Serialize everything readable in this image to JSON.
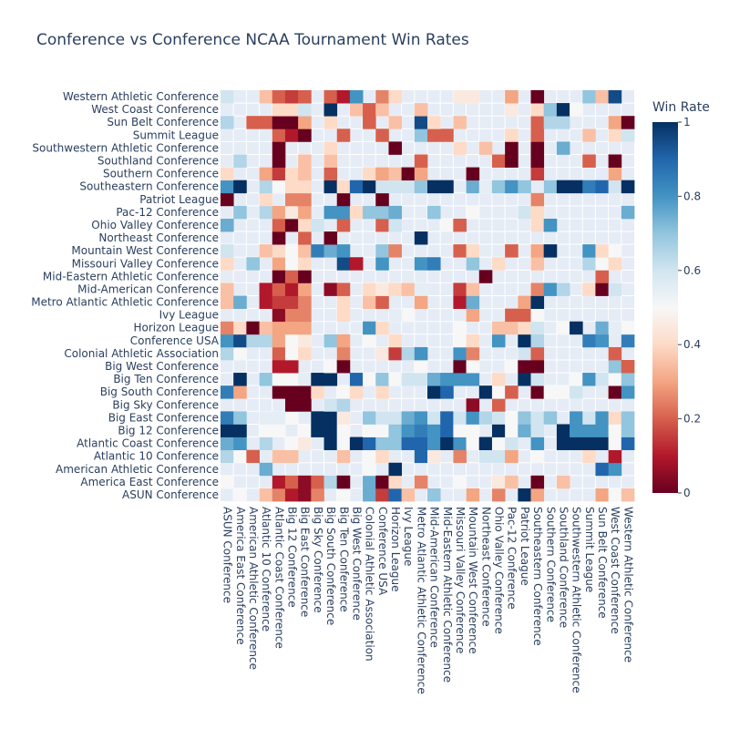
{
  "chart_data": {
    "type": "heatmap",
    "title": "Conference vs Conference NCAA Tournament Win Rates",
    "xlabel": "",
    "ylabel": "",
    "colorbar": {
      "title": "Win Rate",
      "range": [
        0,
        1
      ],
      "ticks": [
        0,
        0.2,
        0.4,
        0.6,
        0.8,
        1
      ]
    },
    "colorscale_name": "RdBu",
    "colors": {
      "empty_cell": "#e5ecf6",
      "text": "#2a3f5f",
      "scale": [
        "#67001f",
        "#b2182b",
        "#d6604d",
        "#f4a582",
        "#fddbc7",
        "#f7f7f7",
        "#d1e5f0",
        "#92c5de",
        "#4393c3",
        "#2166ac",
        "#053061"
      ]
    },
    "categories": [
      "ASUN Conference",
      "America East Conference",
      "American Athletic Conference",
      "Atlantic 10 Conference",
      "Atlantic Coast Conference",
      "Big 12 Conference",
      "Big East Conference",
      "Big Sky Conference",
      "Big South Conference",
      "Big Ten Conference",
      "Big West Conference",
      "Colonial Athletic Association",
      "Conference USA",
      "Horizon League",
      "Ivy League",
      "Metro Atlantic Athletic Conference",
      "Mid-American Conference",
      "Mid-Eastern Athletic Conference",
      "Missouri Valley Conference",
      "Mountain West Conference",
      "Northeast Conference",
      "Ohio Valley Conference",
      "Pac-12 Conference",
      "Patriot League",
      "Southeastern Conference",
      "Southern Conference",
      "Southland Conference",
      "Southwestern Athletic Conference",
      "Summit League",
      "Sun Belt Conference",
      "West Coast Conference",
      "Western Athletic Conference"
    ],
    "values": [
      [
        null,
        0.5,
        null,
        0.35,
        0.25,
        0.1,
        0.05,
        0.25,
        null,
        0.5,
        null,
        0.75,
        0.15,
        0.9,
        0.35,
        null,
        0.7,
        null,
        null,
        0.3,
        null,
        0.25,
        null,
        1.0,
        0.3,
        null,
        null,
        null,
        null,
        0.3,
        0.5,
        0.35
      ],
      [
        0.5,
        null,
        null,
        null,
        0.1,
        0.2,
        0.05,
        0.2,
        0.65,
        0.0,
        null,
        0.75,
        0.0,
        0.4,
        null,
        0.25,
        null,
        null,
        0.5,
        null,
        null,
        0.45,
        0.35,
        null,
        0.0,
        null,
        0.35,
        null,
        null,
        null,
        null,
        null
      ],
      [
        null,
        null,
        null,
        0.75,
        null,
        null,
        null,
        null,
        null,
        null,
        null,
        0.5,
        null,
        1.0,
        null,
        null,
        null,
        null,
        null,
        null,
        null,
        null,
        null,
        null,
        null,
        null,
        null,
        null,
        null,
        0.9,
        0.8,
        null
      ],
      [
        0.65,
        0.5,
        0.2,
        null,
        0.35,
        0.35,
        null,
        null,
        null,
        0.35,
        null,
        0.5,
        0.4,
        null,
        null,
        0.9,
        0.45,
        null,
        0.25,
        null,
        0.6,
        0.6,
        0.3,
        null,
        0.5,
        null,
        null,
        null,
        0.4,
        null,
        0.1,
        null
      ],
      [
        0.75,
        0.8,
        null,
        0.65,
        null,
        0.5,
        0.45,
        null,
        1.0,
        0.5,
        1.0,
        0.9,
        0.7,
        0.7,
        0.9,
        0.9,
        0.8,
        1.0,
        0.8,
        0.5,
        1.0,
        0.5,
        0.6,
        null,
        0.8,
        null,
        1.0,
        1.0,
        1.0,
        1.0,
        0.5,
        0.9
      ],
      [
        1.0,
        1.0,
        null,
        0.5,
        0.5,
        null,
        0.5,
        1.0,
        1.0,
        0.5,
        null,
        0.5,
        0.5,
        0.7,
        0.8,
        0.85,
        0.8,
        0.9,
        0.5,
        0.5,
        null,
        1.0,
        0.5,
        0.75,
        0.6,
        null,
        1.0,
        0.8,
        0.8,
        0.8,
        0.5,
        0.7
      ],
      [
        0.85,
        0.7,
        null,
        0.55,
        0.55,
        0.5,
        null,
        1.0,
        1.0,
        0.45,
        null,
        0.7,
        0.6,
        0.6,
        0.75,
        0.8,
        0.6,
        0.9,
        0.6,
        0.8,
        0.65,
        0.6,
        0.5,
        0.7,
        0.6,
        0.7,
        null,
        0.8,
        0.6,
        0.8,
        0.4,
        0.7
      ],
      [
        null,
        null,
        null,
        null,
        null,
        0.0,
        0.0,
        null,
        0.6,
        0.65,
        null,
        null,
        null,
        null,
        null,
        null,
        null,
        null,
        null,
        0.05,
        null,
        0.2,
        null,
        null,
        null,
        null,
        null,
        null,
        null,
        null,
        null,
        null
      ],
      [
        0.85,
        0.3,
        null,
        null,
        0.0,
        0.0,
        0.0,
        0.4,
        null,
        0.5,
        0.4,
        null,
        0.4,
        null,
        null,
        null,
        1.0,
        0.9,
        null,
        null,
        1.0,
        0.5,
        0.2,
        null,
        0.0,
        0.5,
        0.5,
        0.6,
        null,
        null,
        0.0,
        0.8
      ],
      [
        null,
        1.0,
        null,
        0.7,
        0.5,
        0.5,
        0.55,
        1.0,
        1.0,
        null,
        0.9,
        0.5,
        0.7,
        0.5,
        0.6,
        0.6,
        0.75,
        0.8,
        0.8,
        0.8,
        null,
        0.4,
        null,
        1.0,
        0.6,
        null,
        null,
        0.5,
        0.8,
        0.6,
        0.5,
        0.7
      ],
      [
        null,
        null,
        null,
        null,
        0.1,
        0.1,
        null,
        null,
        0.5,
        0.0,
        null,
        null,
        null,
        null,
        null,
        0.5,
        null,
        null,
        0.0,
        0.5,
        null,
        null,
        0.5,
        0.0,
        0.0,
        null,
        null,
        null,
        null,
        null,
        0.7,
        0.2
      ],
      [
        0.65,
        0.5,
        null,
        null,
        0.2,
        0.5,
        0.4,
        null,
        null,
        0.25,
        null,
        null,
        0.45,
        0.15,
        0.65,
        0.8,
        null,
        null,
        0.8,
        0.25,
        null,
        null,
        null,
        0.6,
        0.2,
        null,
        null,
        null,
        null,
        null,
        0.2,
        null
      ],
      [
        0.8,
        0.95,
        0.65,
        0.65,
        0.3,
        0.5,
        0.45,
        null,
        0.7,
        0.3,
        null,
        0.5,
        null,
        0.4,
        null,
        null,
        null,
        null,
        0.5,
        0.4,
        null,
        0.8,
        null,
        1.0,
        0.65,
        null,
        null,
        null,
        0.85,
        0.8,
        null,
        0.85
      ],
      [
        0.25,
        0.4,
        0.0,
        0.35,
        0.3,
        0.3,
        0.3,
        null,
        null,
        null,
        null,
        0.8,
        0.4,
        null,
        null,
        null,
        null,
        null,
        0.5,
        null,
        null,
        0.35,
        0.35,
        0.4,
        0.6,
        null,
        0.5,
        1.0,
        null,
        0.75,
        0.55,
        0.5
      ],
      [
        null,
        null,
        null,
        null,
        0.05,
        0.25,
        0.25,
        null,
        null,
        0.4,
        null,
        null,
        null,
        0.55,
        0.5,
        null,
        null,
        null,
        null,
        0.3,
        null,
        null,
        0.2,
        0.2,
        0.5,
        null,
        null,
        null,
        null,
        null,
        null,
        null
      ],
      [
        0.35,
        0.75,
        null,
        0.1,
        0.15,
        0.15,
        0.25,
        null,
        null,
        0.4,
        null,
        0.35,
        0.2,
        null,
        null,
        0.3,
        null,
        null,
        0.1,
        0.75,
        null,
        null,
        null,
        0.3,
        1.0,
        null,
        null,
        null,
        null,
        null,
        null,
        null
      ],
      [
        0.35,
        null,
        null,
        0.1,
        0.2,
        0.1,
        0.3,
        null,
        0.05,
        0.2,
        null,
        0.4,
        0.45,
        0.4,
        0.35,
        0.55,
        null,
        null,
        0.15,
        0.35,
        null,
        null,
        null,
        null,
        0.25,
        0.8,
        0.65,
        null,
        0.4,
        0.0,
        0.6,
        null
      ],
      [
        null,
        null,
        null,
        null,
        0.0,
        0.2,
        0.0,
        null,
        null,
        null,
        null,
        null,
        null,
        null,
        null,
        null,
        null,
        null,
        null,
        null,
        0.0,
        null,
        null,
        null,
        null,
        null,
        null,
        null,
        null,
        0.2,
        null,
        null
      ],
      [
        0.4,
        null,
        0.7,
        null,
        0.3,
        0.5,
        0.4,
        null,
        null,
        0.95,
        0.1,
        null,
        0.8,
        null,
        null,
        0.8,
        0.85,
        null,
        null,
        0.7,
        null,
        0.4,
        null,
        null,
        0.35,
        null,
        null,
        null,
        0.65,
        0.5,
        0.4,
        null
      ],
      [
        0.6,
        null,
        null,
        0.35,
        0.4,
        0.5,
        0.35,
        0.85,
        0.75,
        0.8,
        null,
        null,
        0.7,
        0.25,
        null,
        null,
        null,
        null,
        0.2,
        0.4,
        null,
        null,
        0.2,
        null,
        0.3,
        1.0,
        null,
        null,
        0.8,
        0.4,
        0.5,
        null
      ],
      [
        null,
        null,
        null,
        null,
        0.0,
        null,
        0.2,
        null,
        0.0,
        null,
        null,
        null,
        null,
        null,
        null,
        1.0,
        null,
        null,
        null,
        null,
        null,
        null,
        null,
        null,
        null,
        null,
        null,
        null,
        null,
        null,
        null,
        null
      ],
      [
        0.75,
        null,
        null,
        null,
        0.2,
        0.0,
        0.4,
        0.6,
        null,
        0.2,
        null,
        null,
        0.2,
        0.6,
        null,
        null,
        null,
        0.5,
        0.2,
        null,
        null,
        null,
        null,
        null,
        0.4,
        0.8,
        null,
        null,
        null,
        null,
        null,
        null
      ],
      [
        null,
        0.7,
        null,
        0.65,
        0.3,
        0.45,
        0.3,
        null,
        0.8,
        0.8,
        0.4,
        0.7,
        0.7,
        0.75,
        null,
        null,
        0.7,
        null,
        null,
        0.5,
        null,
        null,
        null,
        0.6,
        0.4,
        null,
        null,
        null,
        null,
        null,
        null,
        0.75
      ],
      [
        0.0,
        null,
        null,
        0.4,
        null,
        0.25,
        0.25,
        null,
        null,
        0.0,
        null,
        null,
        0.0,
        null,
        null,
        null,
        null,
        null,
        null,
        null,
        null,
        null,
        null,
        null,
        0.25,
        null,
        null,
        null,
        null,
        null,
        null,
        null
      ],
      [
        0.8,
        1.0,
        null,
        0.65,
        0.5,
        0.4,
        0.4,
        null,
        1.0,
        0.4,
        0.9,
        1.0,
        0.6,
        0.6,
        0.6,
        0.7,
        1.0,
        1.0,
        null,
        0.75,
        0.55,
        0.7,
        0.8,
        0.7,
        null,
        0.7,
        1.0,
        1.0,
        0.85,
        0.9,
        0.6,
        1.0
      ],
      [
        0.4,
        null,
        null,
        0.3,
        0.15,
        0.4,
        0.35,
        null,
        0.2,
        null,
        null,
        0.4,
        0.3,
        0.35,
        0.0,
        0.3,
        null,
        null,
        null,
        0.0,
        null,
        null,
        null,
        null,
        0.15,
        null,
        null,
        null,
        null,
        null,
        0.3,
        null
      ],
      [
        null,
        0.65,
        null,
        null,
        0.0,
        null,
        0.35,
        null,
        0.35,
        null,
        null,
        null,
        null,
        null,
        null,
        0.2,
        null,
        null,
        null,
        null,
        null,
        0.2,
        0.0,
        null,
        0.0,
        null,
        null,
        null,
        0.2,
        null,
        0.0,
        null
      ],
      [
        null,
        null,
        null,
        null,
        0.0,
        null,
        null,
        null,
        0.4,
        null,
        null,
        null,
        null,
        0.0,
        null,
        null,
        null,
        null,
        0.4,
        null,
        0.35,
        null,
        0.0,
        null,
        0.0,
        null,
        0.75,
        null,
        null,
        null,
        null,
        null
      ],
      [
        null,
        null,
        null,
        null,
        0.2,
        0.1,
        0.0,
        null,
        null,
        0.2,
        null,
        null,
        0.2,
        null,
        null,
        0.7,
        0.2,
        0.2,
        null,
        null,
        null,
        null,
        0.4,
        null,
        0.2,
        null,
        null,
        null,
        0.35,
        null,
        0.4,
        0.6
      ],
      [
        0.65,
        null,
        0.2,
        0.2,
        0.0,
        0.0,
        0.3,
        null,
        0.4,
        null,
        null,
        0.2,
        null,
        0.35,
        null,
        0.95,
        0.4,
        null,
        0.35,
        null,
        null,
        null,
        null,
        null,
        0.2,
        0.65,
        0.65,
        null,
        null,
        null,
        0.3,
        0.0
      ],
      [
        null,
        null,
        null,
        null,
        0.4,
        0.4,
        0.6,
        null,
        1.0,
        null,
        0.35,
        0.2,
        0.35,
        null,
        null,
        0.35,
        null,
        null,
        null,
        null,
        null,
        null,
        0.45,
        null,
        0.4,
        0.7,
        1.0,
        0.5,
        null,
        null,
        null,
        null
      ],
      [
        0.6,
        null,
        null,
        0.35,
        0.2,
        0.15,
        0.2,
        null,
        0.2,
        0.1,
        0.8,
        null,
        0.25,
        0.4,
        null,
        null,
        null,
        null,
        0.45,
        0.45,
        null,
        null,
        0.3,
        null,
        0.0,
        null,
        null,
        null,
        0.7,
        0.35,
        0.95,
        null
      ]
    ]
  },
  "labels": {
    "title": "Conference vs Conference NCAA Tournament Win Rates",
    "colorbar_title": "Win Rate"
  }
}
